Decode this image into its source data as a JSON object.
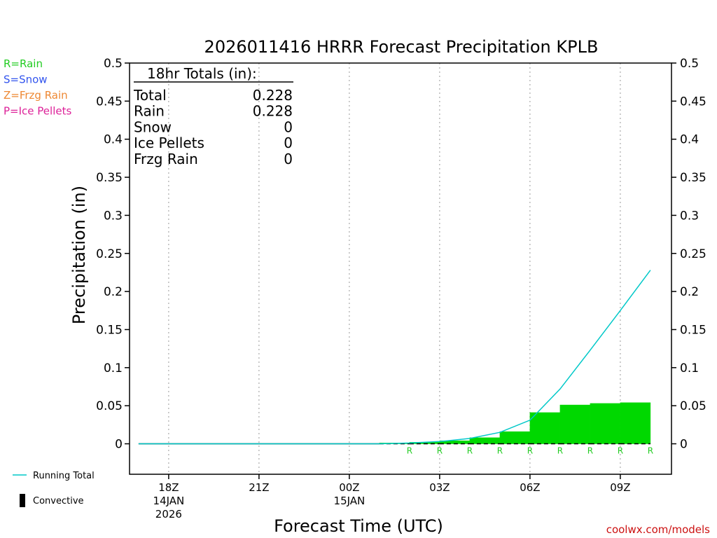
{
  "chart_data": {
    "type": "bar",
    "title": "2026011416 HRRR Forecast Precipitation KPLB",
    "xlabel": "Forecast Time (UTC)",
    "ylabel": "Precipitation (in)",
    "ylim": [
      -0.04,
      0.5
    ],
    "yticks": [
      0,
      0.05,
      0.1,
      0.15,
      0.2,
      0.25,
      0.3,
      0.35,
      0.4,
      0.45,
      0.5
    ],
    "ytick_labels": [
      "0",
      "0.05",
      "0.1",
      "0.15",
      "0.2",
      "0.25",
      "0.3",
      "0.35",
      "0.4",
      "0.45",
      "0.5"
    ],
    "xlim_hours": [
      -1.3,
      16.7
    ],
    "xticks": [
      {
        "hour": 0,
        "label": "18Z",
        "date": "14JAN",
        "year": "2026"
      },
      {
        "hour": 3,
        "label": "21Z",
        "date": "",
        "year": ""
      },
      {
        "hour": 6,
        "label": "00Z",
        "date": "15JAN",
        "year": ""
      },
      {
        "hour": 9,
        "label": "03Z",
        "date": "",
        "year": ""
      },
      {
        "hour": 12,
        "label": "06Z",
        "date": "",
        "year": ""
      },
      {
        "hour": 15,
        "label": "09Z",
        "date": "",
        "year": ""
      }
    ],
    "hourly_precip": {
      "hours": [
        8,
        9,
        10,
        11,
        12,
        13,
        14,
        15,
        16
      ],
      "values": [
        0.001,
        0.002,
        0.004,
        0.008,
        0.016,
        0.041,
        0.051,
        0.053,
        0.054
      ],
      "ptype": [
        "R",
        "R",
        "R",
        "R",
        "R",
        "R",
        "R",
        "R",
        "R"
      ]
    },
    "running_total": {
      "hours": [
        -1,
        0,
        1,
        2,
        3,
        4,
        5,
        6,
        7,
        8,
        9,
        10,
        11,
        12,
        13,
        14,
        15,
        16
      ],
      "values": [
        0,
        0,
        0,
        0,
        0,
        0,
        0,
        0,
        0,
        0.001,
        0.003,
        0.007,
        0.015,
        0.031,
        0.072,
        0.123,
        0.175,
        0.228
      ]
    },
    "totals_box": {
      "heading": "18hr Totals (in):",
      "rows": [
        {
          "label": "Total",
          "value": "0.228"
        },
        {
          "label": "Rain",
          "value": "0.228"
        },
        {
          "label": "Snow",
          "value": "0"
        },
        {
          "label": "Ice Pellets",
          "value": "0"
        },
        {
          "label": "Frzg Rain",
          "value": "0"
        }
      ]
    },
    "ptype_legend": [
      {
        "text": "R=Rain",
        "color": "#22cc22"
      },
      {
        "text": "S=Snow",
        "color": "#3355ee"
      },
      {
        "text": "Z=Frzg Rain",
        "color": "#ee8833"
      },
      {
        "text": "P=Ice Pellets",
        "color": "#dd2299"
      }
    ],
    "series_legend": [
      {
        "text": "Running Total",
        "color": "#00c8c8",
        "kind": "line"
      },
      {
        "text": "Convective",
        "color": "#000000",
        "kind": "bar"
      }
    ],
    "bar_color": "#00d800",
    "line_color": "#00c8c8",
    "rain_label_color": "#22cc22",
    "credit": "coolwx.com/models",
    "credit_color": "#cc1111"
  }
}
